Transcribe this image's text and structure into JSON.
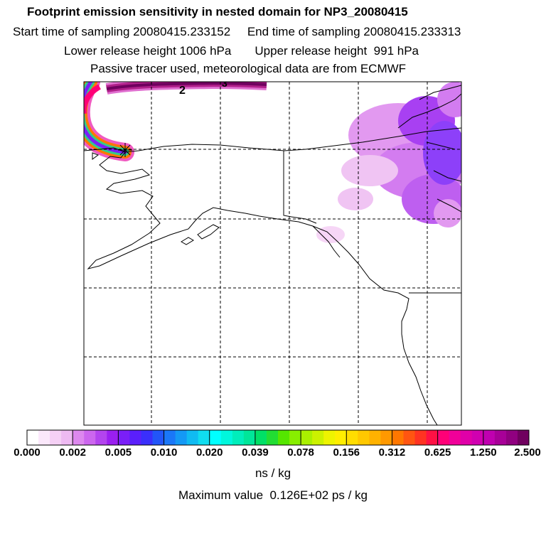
{
  "header": {
    "title": "Footprint emission sensitivity in nested domain for NP3_20080415",
    "sampling_line": "Start time of sampling 20080415.233152     End time of sampling 20080415.233313",
    "release_line": "Lower release height 1006 hPa       Upper release height  991 hPa",
    "tracer_line": "Passive tracer used, meteorological data are from ECMWF"
  },
  "map": {
    "plume_labels": [
      "2",
      "3"
    ],
    "release_marker": "asterisk"
  },
  "colorbar": {
    "tick_labels": [
      "0.000",
      "0.002",
      "0.005",
      "0.010",
      "0.020",
      "0.039",
      "0.078",
      "0.156",
      "0.312",
      "0.625",
      "1.250",
      "2.500"
    ],
    "colors": [
      "#ffffff",
      "#fbe8fb",
      "#f5d0f5",
      "#eebaf2",
      "#dd88ee",
      "#cc66ee",
      "#b344ee",
      "#9a1ff0",
      "#7a1ff8",
      "#5a1ffb",
      "#3a2ffb",
      "#2255f8",
      "#1a77f8",
      "#1499f5",
      "#10bbf2",
      "#10ddf0",
      "#00ffff",
      "#00f7dd",
      "#00eebb",
      "#00e699",
      "#00e066",
      "#22dd33",
      "#55e600",
      "#88ee00",
      "#aaf000",
      "#ccf200",
      "#eef400",
      "#ffee00",
      "#ffdd00",
      "#ffc800",
      "#ffb200",
      "#ff9900",
      "#ff7700",
      "#ff5511",
      "#ff3322",
      "#ff1144",
      "#ff0077",
      "#f00099",
      "#e000a8",
      "#d000b0",
      "#c000b0",
      "#a80098",
      "#900080",
      "#70005f"
    ],
    "units": "ns / kg"
  },
  "footer": {
    "max_value": "Maximum value  0.126E+02 ps / kg"
  }
}
